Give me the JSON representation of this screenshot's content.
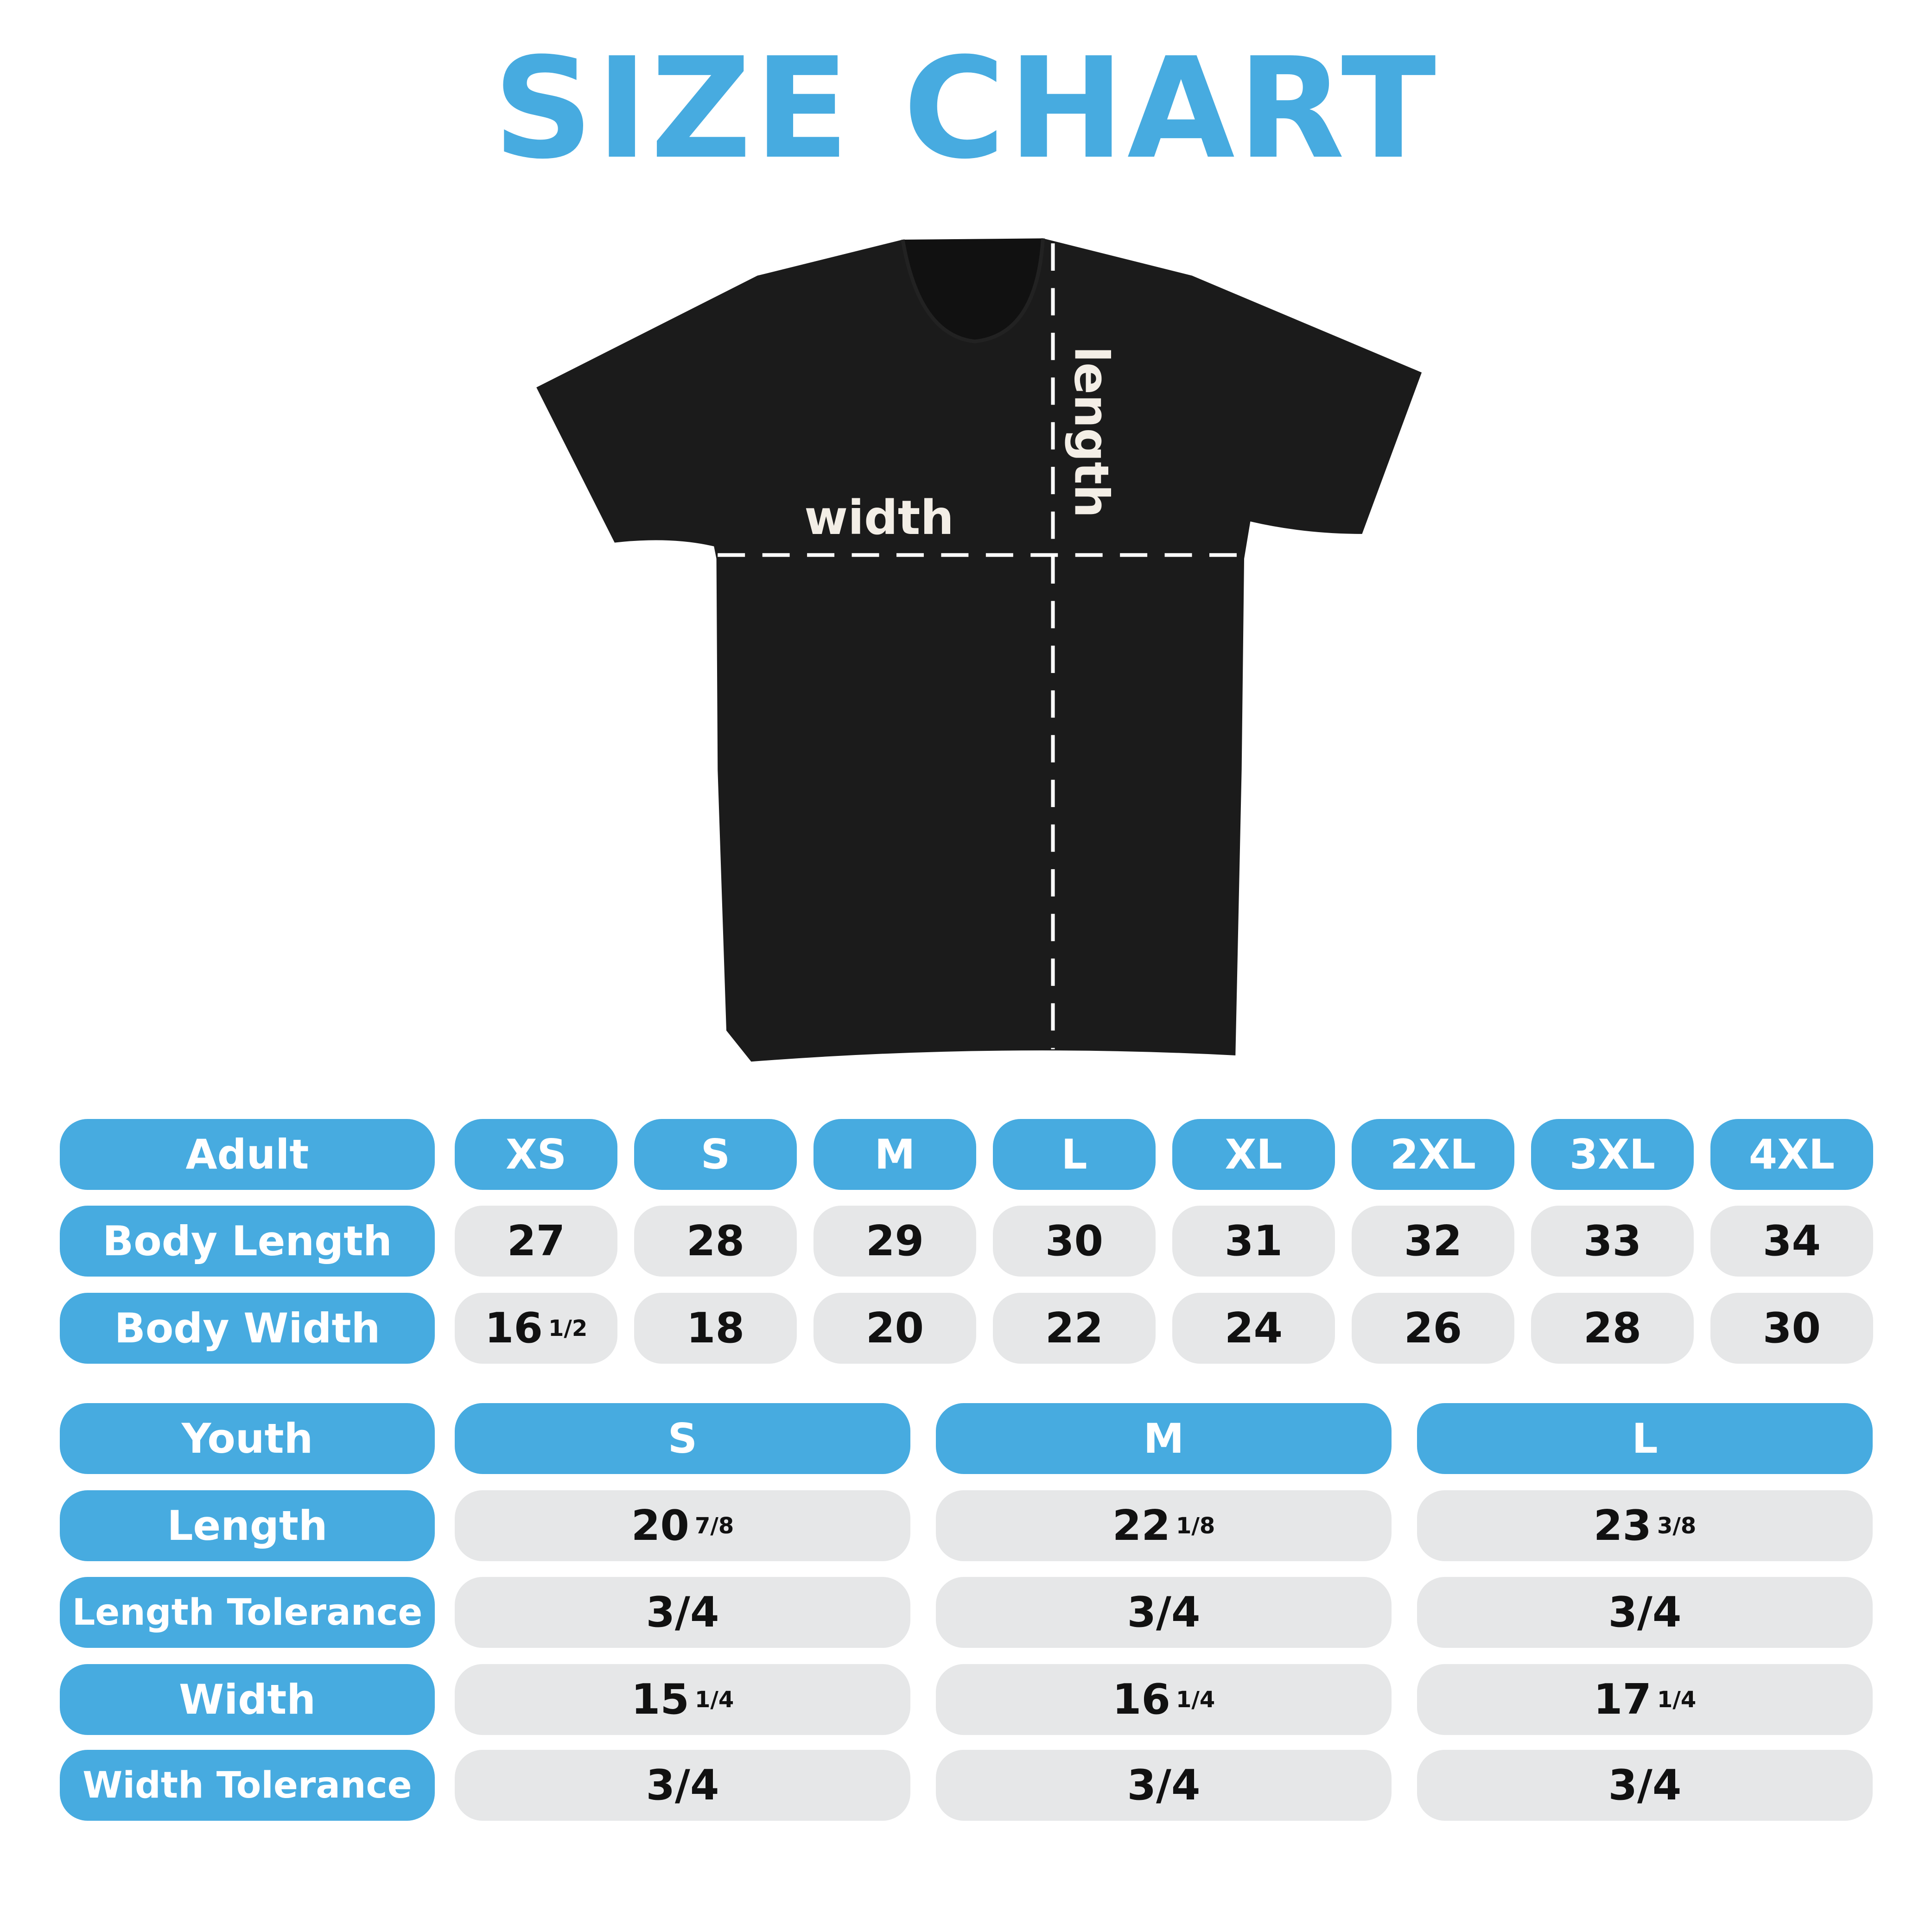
{
  "title": "SIZE CHART",
  "colors": {
    "accent": "#47ABE0",
    "cell": "#E6E7E8",
    "shirt": "#1B1B1B"
  },
  "shirt": {
    "width_label": "width",
    "length_label": "length"
  },
  "adult": {
    "header": "Adult",
    "sizes": [
      "XS",
      "S",
      "M",
      "L",
      "XL",
      "2XL",
      "3XL",
      "4XL"
    ],
    "rows": [
      {
        "label": "Body Length",
        "values": [
          {
            "whole": "27",
            "frac": ""
          },
          {
            "whole": "28",
            "frac": ""
          },
          {
            "whole": "29",
            "frac": ""
          },
          {
            "whole": "30",
            "frac": ""
          },
          {
            "whole": "31",
            "frac": ""
          },
          {
            "whole": "32",
            "frac": ""
          },
          {
            "whole": "33",
            "frac": ""
          },
          {
            "whole": "34",
            "frac": ""
          }
        ]
      },
      {
        "label": "Body Width",
        "values": [
          {
            "whole": "16",
            "frac": "1/2"
          },
          {
            "whole": "18",
            "frac": ""
          },
          {
            "whole": "20",
            "frac": ""
          },
          {
            "whole": "22",
            "frac": ""
          },
          {
            "whole": "24",
            "frac": ""
          },
          {
            "whole": "26",
            "frac": ""
          },
          {
            "whole": "28",
            "frac": ""
          },
          {
            "whole": "30",
            "frac": ""
          }
        ]
      }
    ]
  },
  "youth": {
    "header": "Youth",
    "sizes": [
      "S",
      "M",
      "L"
    ],
    "rows": [
      {
        "label": "Length",
        "values": [
          {
            "whole": "20",
            "frac": "7/8"
          },
          {
            "whole": "22",
            "frac": "1/8"
          },
          {
            "whole": "23",
            "frac": "3/8"
          }
        ]
      },
      {
        "label": "Length Tolerance",
        "values": [
          {
            "whole": "3/4",
            "frac": ""
          },
          {
            "whole": "3/4",
            "frac": ""
          },
          {
            "whole": "3/4",
            "frac": ""
          }
        ]
      },
      {
        "label": "Width",
        "values": [
          {
            "whole": "15",
            "frac": "1/4"
          },
          {
            "whole": "16",
            "frac": "1/4"
          },
          {
            "whole": "17",
            "frac": "1/4"
          }
        ]
      },
      {
        "label": "Width Tolerance",
        "values": [
          {
            "whole": "3/4",
            "frac": ""
          },
          {
            "whole": "3/4",
            "frac": ""
          },
          {
            "whole": "3/4",
            "frac": ""
          }
        ]
      }
    ]
  }
}
